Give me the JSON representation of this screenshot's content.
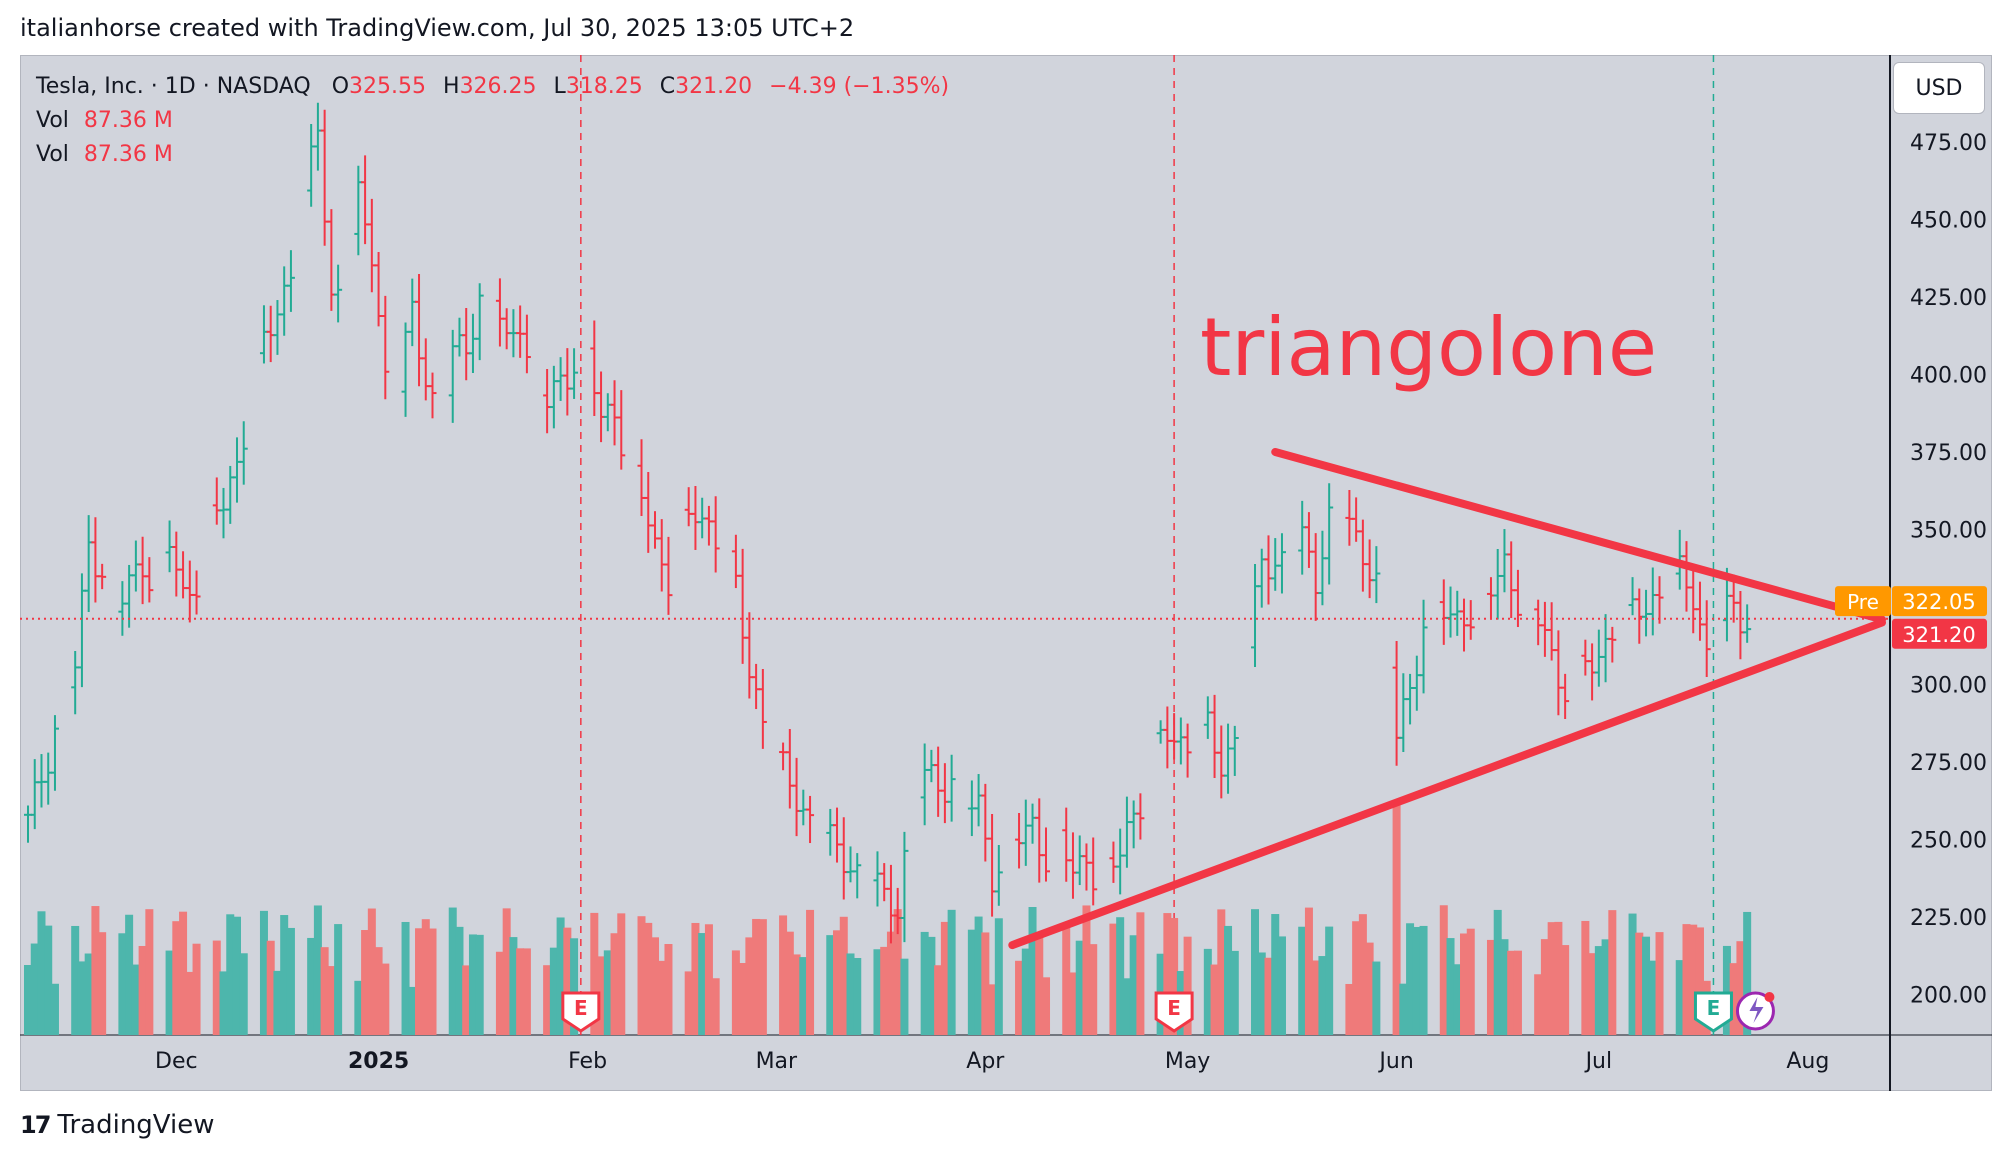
{
  "credit": "italianhorse created with TradingView.com, Jul 30, 2025 13:05 UTC+2",
  "legend": {
    "symbol": "Tesla, Inc. · 1D · NASDAQ",
    "o_label": "O",
    "o_value": "325.55",
    "h_label": "H",
    "h_value": "326.25",
    "l_label": "L",
    "l_value": "318.25",
    "c_label": "C",
    "c_value": "321.20",
    "change": "−4.39 (−1.35%)",
    "vol_label": "Vol",
    "vol_value": "87.36 M"
  },
  "currency": "USD",
  "annotation": "triangolone",
  "footer": "TradingView",
  "colors": {
    "up": "#22ab94",
    "down": "#f23645",
    "vol_up": "#4db6ac",
    "vol_down": "#ef7a7a",
    "trend": "#f23645",
    "pre": "#ff9800",
    "earnings": "#f23645",
    "earnings_next": "#22ab94"
  },
  "chart_data": {
    "type": "ohlc-bar",
    "y_ticks": [
      "475.00",
      "450.00",
      "425.00",
      "400.00",
      "375.00",
      "350.00",
      "325.00",
      "300.00",
      "275.00",
      "250.00",
      "225.00",
      "200.00"
    ],
    "x_ticks": [
      {
        "label": "Dec",
        "day": 22
      },
      {
        "label": "2025",
        "day": 52
      },
      {
        "label": "Feb",
        "day": 83
      },
      {
        "label": "Mar",
        "day": 111
      },
      {
        "label": "Apr",
        "day": 142
      },
      {
        "label": "May",
        "day": 172
      },
      {
        "label": "Jun",
        "day": 203
      },
      {
        "label": "Jul",
        "day": 233
      },
      {
        "label": "Aug",
        "day": 264
      }
    ],
    "ylim": [
      187,
      503
    ],
    "xlim": [
      0,
      275
    ],
    "last_price": "321.20",
    "last_price_value": 321.2,
    "pre_label": "Pre",
    "pre_price": "322.05",
    "pre_price_value": 322.05,
    "earnings_days": [
      82,
      170
    ],
    "earnings_next_day": 250,
    "earnings_label": "E",
    "trendlines": [
      {
        "from": {
          "day": 185,
          "price": 375
        },
        "to": {
          "day": 275,
          "price": 321
        }
      },
      {
        "from": {
          "day": 146,
          "price": 216
        },
        "to": {
          "day": 275,
          "price": 320
        }
      }
    ],
    "anchors": [
      [
        0,
        255
      ],
      [
        3,
        278
      ],
      [
        5,
        295
      ],
      [
        7,
        305
      ],
      [
        9,
        345
      ],
      [
        11,
        338
      ],
      [
        13,
        322
      ],
      [
        15,
        332
      ],
      [
        17,
        340
      ],
      [
        19,
        332
      ],
      [
        21,
        345
      ],
      [
        23,
        328
      ],
      [
        25,
        335
      ],
      [
        27,
        352
      ],
      [
        29,
        358
      ],
      [
        31,
        372
      ],
      [
        33,
        392
      ],
      [
        35,
        410
      ],
      [
        37,
        420
      ],
      [
        39,
        435
      ],
      [
        41,
        455
      ],
      [
        43,
        480
      ],
      [
        45,
        425
      ],
      [
        47,
        432
      ],
      [
        49,
        455
      ],
      [
        51,
        440
      ],
      [
        53,
        400
      ],
      [
        55,
        395
      ],
      [
        57,
        420
      ],
      [
        59,
        400
      ],
      [
        61,
        385
      ],
      [
        63,
        405
      ],
      [
        65,
        410
      ],
      [
        67,
        425
      ],
      [
        69,
        425
      ],
      [
        71,
        408
      ],
      [
        73,
        420
      ],
      [
        75,
        395
      ],
      [
        77,
        390
      ],
      [
        79,
        398
      ],
      [
        81,
        405
      ],
      [
        83,
        405
      ],
      [
        85,
        385
      ],
      [
        87,
        390
      ],
      [
        89,
        370
      ],
      [
        91,
        360
      ],
      [
        93,
        345
      ],
      [
        95,
        335
      ],
      [
        97,
        350
      ],
      [
        99,
        355
      ],
      [
        101,
        352
      ],
      [
        103,
        345
      ],
      [
        105,
        330
      ],
      [
        107,
        305
      ],
      [
        109,
        290
      ],
      [
        111,
        275
      ],
      [
        113,
        268
      ],
      [
        115,
        260
      ],
      [
        117,
        255
      ],
      [
        119,
        248
      ],
      [
        121,
        245
      ],
      [
        123,
        240
      ],
      [
        125,
        238
      ],
      [
        127,
        230
      ],
      [
        129,
        230
      ],
      [
        131,
        260
      ],
      [
        133,
        270
      ],
      [
        135,
        268
      ],
      [
        137,
        270
      ],
      [
        139,
        260
      ],
      [
        141,
        260
      ],
      [
        143,
        240
      ],
      [
        145,
        245
      ],
      [
        147,
        250
      ],
      [
        149,
        255
      ],
      [
        151,
        245
      ],
      [
        153,
        248
      ],
      [
        155,
        240
      ],
      [
        157,
        245
      ],
      [
        159,
        235
      ],
      [
        161,
        240
      ],
      [
        163,
        255
      ],
      [
        165,
        262
      ],
      [
        167,
        278
      ],
      [
        169,
        285
      ],
      [
        171,
        282
      ],
      [
        173,
        280
      ],
      [
        175,
        285
      ],
      [
        177,
        275
      ],
      [
        179,
        283
      ],
      [
        181,
        310
      ],
      [
        183,
        340
      ],
      [
        185,
        340
      ],
      [
        187,
        342
      ],
      [
        189,
        345
      ],
      [
        191,
        335
      ],
      [
        193,
        355
      ],
      [
        195,
        355
      ],
      [
        197,
        345
      ],
      [
        199,
        340
      ],
      [
        201,
        330
      ],
      [
        203,
        282
      ],
      [
        205,
        300
      ],
      [
        207,
        320
      ],
      [
        209,
        325
      ],
      [
        211,
        320
      ],
      [
        213,
        325
      ],
      [
        215,
        320
      ],
      [
        217,
        330
      ],
      [
        219,
        340
      ],
      [
        221,
        328
      ],
      [
        223,
        318
      ],
      [
        225,
        320
      ],
      [
        227,
        300
      ],
      [
        229,
        300
      ],
      [
        231,
        305
      ],
      [
        233,
        310
      ],
      [
        235,
        318
      ],
      [
        237,
        320
      ],
      [
        239,
        325
      ],
      [
        241,
        328
      ],
      [
        243,
        330
      ],
      [
        245,
        335
      ],
      [
        247,
        330
      ],
      [
        249,
        310
      ],
      [
        251,
        320
      ],
      [
        253,
        325
      ],
      [
        255,
        321
      ]
    ],
    "volume_scale": "relative"
  }
}
